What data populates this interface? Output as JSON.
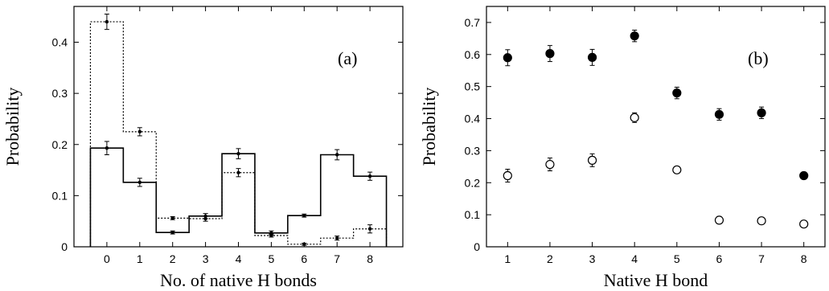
{
  "chart_data": [
    {
      "panel_label": "(a)",
      "type": "step",
      "xlabel": "No. of native H bonds",
      "ylabel": "Probability",
      "x_ticks": [
        "0",
        "1",
        "2",
        "3",
        "4",
        "5",
        "6",
        "7",
        "8"
      ],
      "y_ticks": [
        "0",
        "0.1",
        "0.2",
        "0.3",
        "0.4"
      ],
      "ylim": [
        0,
        0.47
      ],
      "xlim": [
        -1,
        9
      ],
      "grid": false,
      "series": [
        {
          "style": "solid",
          "x": [
            0,
            1,
            2,
            3,
            4,
            5,
            6,
            7,
            8
          ],
          "values": [
            0.193,
            0.126,
            0.028,
            0.06,
            0.182,
            0.027,
            0.061,
            0.18,
            0.138
          ],
          "errors": [
            0.013,
            0.008,
            0.003,
            0.005,
            0.01,
            0.004,
            0.003,
            0.01,
            0.008
          ]
        },
        {
          "style": "dotted",
          "x": [
            0,
            1,
            2,
            3,
            4,
            5,
            6,
            7,
            8
          ],
          "values": [
            0.44,
            0.225,
            0.056,
            0.055,
            0.145,
            0.022,
            0.005,
            0.017,
            0.035
          ],
          "errors": [
            0.015,
            0.008,
            0.003,
            0.005,
            0.008,
            0.003,
            0.002,
            0.004,
            0.008
          ]
        }
      ]
    },
    {
      "panel_label": "(b)",
      "type": "scatter",
      "xlabel": "Native H bond",
      "ylabel": "Probability",
      "x_ticks": [
        "1",
        "2",
        "3",
        "4",
        "5",
        "6",
        "7",
        "8"
      ],
      "y_ticks": [
        "0",
        "0.1",
        "0.2",
        "0.3",
        "0.4",
        "0.5",
        "0.6",
        "0.7"
      ],
      "ylim": [
        0,
        0.75
      ],
      "xlim": [
        0.5,
        8.5
      ],
      "grid": false,
      "series": [
        {
          "marker": "filled-circle",
          "x": [
            1,
            2,
            3,
            4,
            5,
            6,
            7,
            8
          ],
          "values": [
            0.59,
            0.603,
            0.591,
            0.658,
            0.48,
            0.413,
            0.418,
            0.222
          ],
          "errors": [
            0.025,
            0.025,
            0.025,
            0.018,
            0.018,
            0.018,
            0.018,
            0.008
          ]
        },
        {
          "marker": "open-circle",
          "x": [
            1,
            2,
            3,
            4,
            5,
            6,
            7,
            8
          ],
          "values": [
            0.222,
            0.257,
            0.27,
            0.403,
            0.24,
            0.083,
            0.081,
            0.071
          ],
          "errors": [
            0.02,
            0.02,
            0.02,
            0.015,
            0.01,
            0.01,
            0.01,
            0.01
          ]
        }
      ]
    }
  ]
}
